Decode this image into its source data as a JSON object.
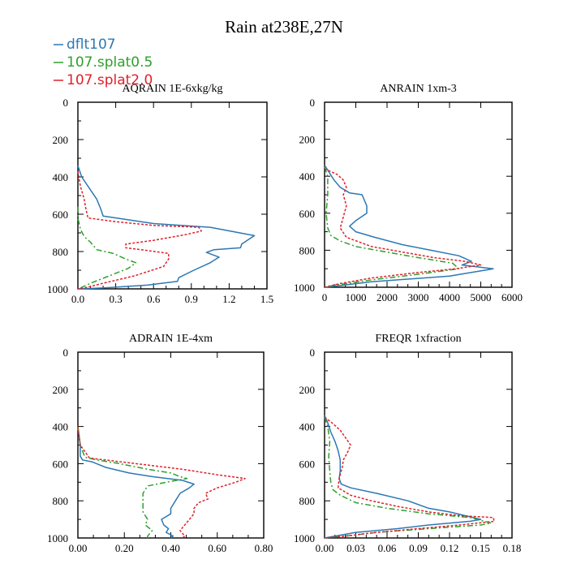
{
  "title": "Rain at238E,27N",
  "colors": {
    "dflt107": "#2c78b4",
    "splat05": "#2ea02c",
    "splat20": "#e0202a"
  },
  "legend": [
    {
      "name": "dflt107",
      "color": "#2c78b4",
      "dash": "solid"
    },
    {
      "name": "107.splat0.5",
      "color": "#2ea02c",
      "dash": "dashdot"
    },
    {
      "name": "107.splat2.0",
      "color": "#e0202a",
      "dash": "dotted"
    }
  ],
  "chart_data": [
    {
      "type": "line",
      "title": "AQRAIN  1E-6xkg/kg",
      "xlim": [
        0,
        1.5
      ],
      "ylim": [
        1000,
        0
      ],
      "xticks": [
        "0.0",
        "0.3",
        "0.6",
        "0.9",
        "1.2",
        "1.5"
      ],
      "yticks": [
        "0",
        "200",
        "400",
        "600",
        "800",
        "1000"
      ],
      "series": [
        {
          "name": "dflt107",
          "points": [
            [
              0,
              340
            ],
            [
              0.03,
              400
            ],
            [
              0.09,
              460
            ],
            [
              0.15,
              520
            ],
            [
              0.18,
              570
            ],
            [
              0.2,
              610
            ],
            [
              0.4,
              630
            ],
            [
              0.6,
              650
            ],
            [
              1.05,
              670
            ],
            [
              1.4,
              715
            ],
            [
              1.3,
              760
            ],
            [
              1.29,
              780
            ],
            [
              1.08,
              790
            ],
            [
              1.02,
              805
            ],
            [
              1.12,
              830
            ],
            [
              1.05,
              860
            ],
            [
              0.92,
              900
            ],
            [
              0.8,
              940
            ],
            [
              0.79,
              960
            ],
            [
              0.55,
              980
            ],
            [
              0.2,
              995
            ],
            [
              0,
              1000
            ]
          ]
        },
        {
          "name": "107.splat0.5",
          "points": [
            [
              0,
              560
            ],
            [
              0,
              620
            ],
            [
              0.02,
              680
            ],
            [
              0.05,
              720
            ],
            [
              0.1,
              750
            ],
            [
              0.15,
              790
            ],
            [
              0.28,
              810
            ],
            [
              0.38,
              840
            ],
            [
              0.46,
              860
            ],
            [
              0.4,
              890
            ],
            [
              0.25,
              930
            ],
            [
              0.1,
              970
            ],
            [
              0.02,
              995
            ],
            [
              0,
              1000
            ]
          ]
        },
        {
          "name": "107.splat2.0",
          "points": [
            [
              0,
              370
            ],
            [
              0.02,
              450
            ],
            [
              0.05,
              520
            ],
            [
              0.06,
              560
            ],
            [
              0.08,
              620
            ],
            [
              0.3,
              640
            ],
            [
              0.6,
              660
            ],
            [
              0.96,
              670
            ],
            [
              0.98,
              690
            ],
            [
              0.85,
              710
            ],
            [
              0.6,
              740
            ],
            [
              0.38,
              760
            ],
            [
              0.38,
              780
            ],
            [
              0.5,
              790
            ],
            [
              0.72,
              810
            ],
            [
              0.72,
              840
            ],
            [
              0.68,
              880
            ],
            [
              0.45,
              930
            ],
            [
              0.2,
              970
            ],
            [
              0.05,
              995
            ],
            [
              0,
              1000
            ]
          ]
        }
      ]
    },
    {
      "type": "line",
      "title": "ANRAIN  1xm-3",
      "xlim": [
        0,
        6000
      ],
      "ylim": [
        1000,
        0
      ],
      "xticks": [
        "0",
        "1000",
        "2000",
        "3000",
        "4000",
        "5000",
        "6000"
      ],
      "yticks": [
        "0",
        "200",
        "400",
        "600",
        "800",
        "1000"
      ],
      "series": [
        {
          "name": "dflt107",
          "points": [
            [
              0,
              340
            ],
            [
              150,
              380
            ],
            [
              300,
              420
            ],
            [
              500,
              460
            ],
            [
              800,
              490
            ],
            [
              1200,
              500
            ],
            [
              1350,
              560
            ],
            [
              1350,
              600
            ],
            [
              1000,
              640
            ],
            [
              800,
              670
            ],
            [
              1000,
              700
            ],
            [
              1600,
              730
            ],
            [
              2500,
              770
            ],
            [
              3400,
              800
            ],
            [
              4300,
              830
            ],
            [
              4700,
              860
            ],
            [
              4400,
              880
            ],
            [
              5400,
              900
            ],
            [
              4000,
              940
            ],
            [
              1500,
              970
            ],
            [
              300,
              995
            ],
            [
              0,
              1000
            ]
          ]
        },
        {
          "name": "107.splat0.5",
          "points": [
            [
              0,
              350
            ],
            [
              100,
              400
            ],
            [
              100,
              500
            ],
            [
              50,
              600
            ],
            [
              100,
              680
            ],
            [
              200,
              720
            ],
            [
              500,
              750
            ],
            [
              1000,
              780
            ],
            [
              2000,
              810
            ],
            [
              3000,
              840
            ],
            [
              4100,
              870
            ],
            [
              4300,
              900
            ],
            [
              3000,
              930
            ],
            [
              1500,
              960
            ],
            [
              300,
              990
            ],
            [
              0,
              1000
            ]
          ]
        },
        {
          "name": "107.splat2.0",
          "points": [
            [
              0,
              360
            ],
            [
              400,
              390
            ],
            [
              600,
              420
            ],
            [
              700,
              460
            ],
            [
              600,
              500
            ],
            [
              700,
              560
            ],
            [
              600,
              620
            ],
            [
              500,
              680
            ],
            [
              700,
              730
            ],
            [
              1500,
              780
            ],
            [
              2500,
              810
            ],
            [
              3500,
              840
            ],
            [
              4500,
              860
            ],
            [
              5000,
              880
            ],
            [
              4200,
              900
            ],
            [
              3000,
              920
            ],
            [
              1500,
              950
            ],
            [
              500,
              980
            ],
            [
              0,
              1000
            ]
          ]
        }
      ]
    },
    {
      "type": "line",
      "title": "ADRAIN  1E-4xm",
      "xlim": [
        0,
        0.8
      ],
      "ylim": [
        1000,
        0
      ],
      "xticks": [
        "0.00",
        "0.20",
        "0.40",
        "0.60",
        "0.80"
      ],
      "yticks": [
        "0",
        "200",
        "400",
        "600",
        "800",
        "1000"
      ],
      "series": [
        {
          "name": "dflt107",
          "points": [
            [
              0,
              400
            ],
            [
              0.01,
              500
            ],
            [
              0.01,
              560
            ],
            [
              0.02,
              580
            ],
            [
              0.06,
              590
            ],
            [
              0.12,
              620
            ],
            [
              0.22,
              650
            ],
            [
              0.32,
              670
            ],
            [
              0.45,
              690
            ],
            [
              0.5,
              710
            ],
            [
              0.48,
              730
            ],
            [
              0.44,
              760
            ],
            [
              0.42,
              800
            ],
            [
              0.4,
              840
            ],
            [
              0.4,
              870
            ],
            [
              0.36,
              900
            ],
            [
              0.37,
              930
            ],
            [
              0.39,
              950
            ],
            [
              0.38,
              970
            ],
            [
              0.41,
              990
            ],
            [
              0.4,
              1000
            ]
          ]
        },
        {
          "name": "107.splat0.5",
          "points": [
            [
              0,
              400
            ],
            [
              0.01,
              500
            ],
            [
              0.03,
              565
            ],
            [
              0.08,
              580
            ],
            [
              0.18,
              600
            ],
            [
              0.3,
              630
            ],
            [
              0.4,
              650
            ],
            [
              0.44,
              670
            ],
            [
              0.47,
              680
            ],
            [
              0.38,
              700
            ],
            [
              0.3,
              720
            ],
            [
              0.28,
              760
            ],
            [
              0.28,
              800
            ],
            [
              0.28,
              860
            ],
            [
              0.3,
              900
            ],
            [
              0.29,
              930
            ],
            [
              0.32,
              960
            ],
            [
              0.3,
              990
            ],
            [
              0.3,
              1000
            ]
          ]
        },
        {
          "name": "107.splat2.0",
          "points": [
            [
              0,
              400
            ],
            [
              0.01,
              500
            ],
            [
              0.05,
              570
            ],
            [
              0.25,
              600
            ],
            [
              0.45,
              630
            ],
            [
              0.6,
              660
            ],
            [
              0.72,
              680
            ],
            [
              0.68,
              700
            ],
            [
              0.6,
              730
            ],
            [
              0.55,
              760
            ],
            [
              0.56,
              790
            ],
            [
              0.52,
              810
            ],
            [
              0.5,
              840
            ],
            [
              0.5,
              870
            ],
            [
              0.48,
              900
            ],
            [
              0.46,
              930
            ],
            [
              0.44,
              960
            ],
            [
              0.46,
              990
            ],
            [
              0.45,
              1000
            ]
          ]
        }
      ]
    },
    {
      "type": "line",
      "title": "FREQR  1xfraction",
      "xlim": [
        0,
        0.18
      ],
      "ylim": [
        1000,
        0
      ],
      "xticks": [
        "0.00",
        "0.03",
        "0.06",
        "0.09",
        "0.12",
        "0.15",
        "0.18"
      ],
      "yticks": [
        "0",
        "200",
        "400",
        "600",
        "800",
        "1000"
      ],
      "series": [
        {
          "name": "dflt107",
          "points": [
            [
              0,
              340
            ],
            [
              0.003,
              380
            ],
            [
              0.006,
              430
            ],
            [
              0.01,
              480
            ],
            [
              0.013,
              530
            ],
            [
              0.015,
              580
            ],
            [
              0.015,
              640
            ],
            [
              0.014,
              680
            ],
            [
              0.016,
              710
            ],
            [
              0.025,
              730
            ],
            [
              0.05,
              760
            ],
            [
              0.08,
              800
            ],
            [
              0.1,
              840
            ],
            [
              0.12,
              860
            ],
            [
              0.15,
              900
            ],
            [
              0.14,
              910
            ],
            [
              0.1,
              930
            ],
            [
              0.07,
              950
            ],
            [
              0.03,
              970
            ],
            [
              0.005,
              995
            ],
            [
              0,
              1000
            ]
          ]
        },
        {
          "name": "107.splat0.5",
          "points": [
            [
              0,
              350
            ],
            [
              0.003,
              400
            ],
            [
              0.005,
              480
            ],
            [
              0.004,
              560
            ],
            [
              0.005,
              640
            ],
            [
              0.006,
              700
            ],
            [
              0.008,
              740
            ],
            [
              0.015,
              770
            ],
            [
              0.03,
              810
            ],
            [
              0.06,
              840
            ],
            [
              0.1,
              870
            ],
            [
              0.14,
              890
            ],
            [
              0.16,
              920
            ],
            [
              0.15,
              930
            ],
            [
              0.1,
              950
            ],
            [
              0.05,
              970
            ],
            [
              0.02,
              990
            ],
            [
              0,
              1000
            ]
          ]
        },
        {
          "name": "107.splat2.0",
          "points": [
            [
              0,
              350
            ],
            [
              0.007,
              380
            ],
            [
              0.015,
              420
            ],
            [
              0.02,
              460
            ],
            [
              0.025,
              500
            ],
            [
              0.022,
              540
            ],
            [
              0.018,
              580
            ],
            [
              0.017,
              620
            ],
            [
              0.014,
              680
            ],
            [
              0.013,
              730
            ],
            [
              0.025,
              770
            ],
            [
              0.045,
              800
            ],
            [
              0.07,
              830
            ],
            [
              0.1,
              860
            ],
            [
              0.13,
              880
            ],
            [
              0.162,
              890
            ],
            [
              0.163,
              910
            ],
            [
              0.13,
              930
            ],
            [
              0.09,
              950
            ],
            [
              0.05,
              970
            ],
            [
              0.02,
              990
            ],
            [
              0,
              1000
            ]
          ]
        }
      ]
    }
  ]
}
